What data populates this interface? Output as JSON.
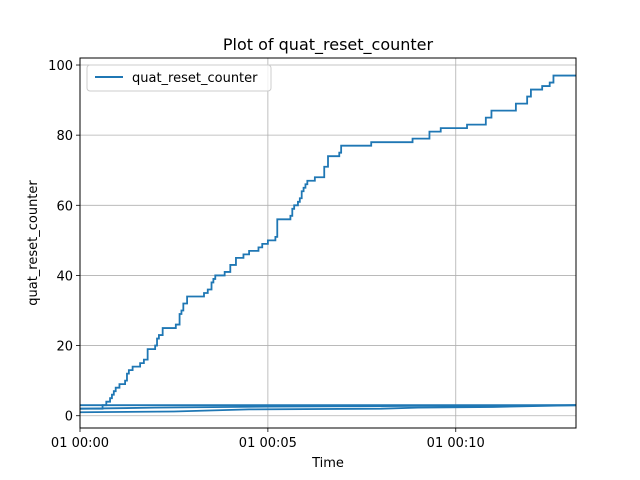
{
  "chart_data": {
    "type": "line",
    "title": "Plot of quat_reset_counter",
    "xlabel": "Time",
    "ylabel": "quat_reset_counter",
    "x_unit": "minutes after 01 00:00",
    "xlim": [
      0,
      13.2
    ],
    "ylim": [
      -3.5,
      102
    ],
    "x_ticks": [
      {
        "value": 0,
        "label": "01 00:00"
      },
      {
        "value": 5,
        "label": "01 00:05"
      },
      {
        "value": 10,
        "label": "01 00:10"
      }
    ],
    "y_ticks": [
      {
        "value": 0,
        "label": "0"
      },
      {
        "value": 20,
        "label": "20"
      },
      {
        "value": 40,
        "label": "40"
      },
      {
        "value": 60,
        "label": "60"
      },
      {
        "value": 80,
        "label": "80"
      },
      {
        "value": 100,
        "label": "100"
      }
    ],
    "grid": true,
    "legend_position": "top-left",
    "color": "#1f77b4",
    "series": [
      {
        "name": "quat_reset_counter",
        "segments": [
          {
            "step": true,
            "points": [
              [
                0.0,
                2
              ],
              [
                0.6,
                2
              ],
              [
                0.6,
                3
              ],
              [
                0.7,
                3
              ],
              [
                0.7,
                4
              ],
              [
                0.8,
                4
              ],
              [
                0.8,
                5
              ],
              [
                0.85,
                5
              ],
              [
                0.85,
                6
              ],
              [
                0.9,
                6
              ],
              [
                0.9,
                7
              ],
              [
                0.95,
                7
              ],
              [
                0.95,
                8
              ],
              [
                1.05,
                8
              ],
              [
                1.05,
                9
              ],
              [
                1.2,
                9
              ],
              [
                1.2,
                10
              ],
              [
                1.25,
                10
              ],
              [
                1.25,
                12
              ],
              [
                1.3,
                12
              ],
              [
                1.3,
                13
              ],
              [
                1.4,
                13
              ],
              [
                1.4,
                14
              ],
              [
                1.6,
                14
              ],
              [
                1.6,
                15
              ],
              [
                1.7,
                15
              ],
              [
                1.7,
                16
              ],
              [
                1.8,
                16
              ],
              [
                1.8,
                19
              ],
              [
                2.0,
                19
              ],
              [
                2.0,
                20
              ],
              [
                2.05,
                20
              ],
              [
                2.05,
                22
              ],
              [
                2.1,
                22
              ],
              [
                2.1,
                23
              ],
              [
                2.2,
                23
              ],
              [
                2.2,
                25
              ],
              [
                2.55,
                25
              ],
              [
                2.55,
                26
              ],
              [
                2.65,
                26
              ],
              [
                2.65,
                29
              ],
              [
                2.7,
                29
              ],
              [
                2.7,
                30
              ],
              [
                2.75,
                30
              ],
              [
                2.75,
                32
              ],
              [
                2.85,
                32
              ],
              [
                2.85,
                34
              ],
              [
                3.3,
                34
              ],
              [
                3.3,
                35
              ],
              [
                3.4,
                35
              ],
              [
                3.4,
                36
              ],
              [
                3.5,
                36
              ],
              [
                3.5,
                38
              ],
              [
                3.55,
                38
              ],
              [
                3.55,
                39
              ],
              [
                3.6,
                39
              ],
              [
                3.6,
                40
              ],
              [
                3.85,
                40
              ],
              [
                3.85,
                41
              ],
              [
                4.0,
                41
              ],
              [
                4.0,
                43
              ],
              [
                4.15,
                43
              ],
              [
                4.15,
                45
              ],
              [
                4.35,
                45
              ],
              [
                4.35,
                46
              ],
              [
                4.5,
                46
              ],
              [
                4.5,
                47
              ],
              [
                4.75,
                47
              ],
              [
                4.75,
                48
              ],
              [
                4.85,
                48
              ],
              [
                4.85,
                49
              ],
              [
                5.0,
                49
              ],
              [
                5.0,
                50
              ],
              [
                5.2,
                50
              ],
              [
                5.2,
                51
              ],
              [
                5.25,
                51
              ],
              [
                5.25,
                56
              ],
              [
                5.6,
                56
              ],
              [
                5.6,
                57
              ],
              [
                5.65,
                57
              ],
              [
                5.65,
                59
              ],
              [
                5.7,
                59
              ],
              [
                5.7,
                60
              ],
              [
                5.8,
                60
              ],
              [
                5.8,
                61
              ],
              [
                5.85,
                61
              ],
              [
                5.85,
                62
              ],
              [
                5.9,
                62
              ],
              [
                5.9,
                64
              ],
              [
                5.95,
                64
              ],
              [
                5.95,
                65
              ],
              [
                6.0,
                65
              ],
              [
                6.0,
                66
              ],
              [
                6.05,
                66
              ],
              [
                6.05,
                67
              ],
              [
                6.25,
                67
              ],
              [
                6.25,
                68
              ],
              [
                6.5,
                68
              ],
              [
                6.5,
                71
              ],
              [
                6.6,
                71
              ],
              [
                6.6,
                74
              ],
              [
                6.9,
                74
              ],
              [
                6.9,
                75
              ],
              [
                6.95,
                75
              ],
              [
                6.95,
                77
              ],
              [
                7.75,
                77
              ],
              [
                7.75,
                78
              ],
              [
                8.85,
                78
              ],
              [
                8.85,
                79
              ],
              [
                9.3,
                79
              ],
              [
                9.3,
                81
              ],
              [
                9.6,
                81
              ],
              [
                9.6,
                82
              ],
              [
                10.3,
                82
              ],
              [
                10.3,
                83
              ],
              [
                10.8,
                83
              ],
              [
                10.8,
                85
              ],
              [
                10.95,
                85
              ],
              [
                10.95,
                87
              ],
              [
                11.6,
                87
              ],
              [
                11.6,
                89
              ],
              [
                11.9,
                89
              ],
              [
                11.9,
                91
              ],
              [
                12.0,
                91
              ],
              [
                12.0,
                93
              ],
              [
                12.3,
                93
              ],
              [
                12.3,
                94
              ],
              [
                12.5,
                94
              ],
              [
                12.5,
                95
              ],
              [
                12.6,
                95
              ],
              [
                12.6,
                97
              ],
              [
                13.2,
                97
              ]
            ]
          },
          {
            "step": false,
            "points": [
              [
                0.0,
                1.0
              ],
              [
                2.5,
                1.2
              ],
              [
                4.5,
                1.8
              ],
              [
                8.0,
                2.0
              ],
              [
                9.0,
                2.3
              ],
              [
                11.0,
                2.5
              ],
              [
                13.2,
                3.0
              ]
            ]
          },
          {
            "step": false,
            "points": [
              [
                0.0,
                2.0
              ],
              [
                2.0,
                2.3
              ],
              [
                5.0,
                2.6
              ],
              [
                9.0,
                2.8
              ],
              [
                13.2,
                3.0
              ]
            ]
          },
          {
            "step": false,
            "points": [
              [
                0.0,
                3.0
              ],
              [
                13.2,
                3.0
              ]
            ]
          }
        ]
      }
    ]
  }
}
